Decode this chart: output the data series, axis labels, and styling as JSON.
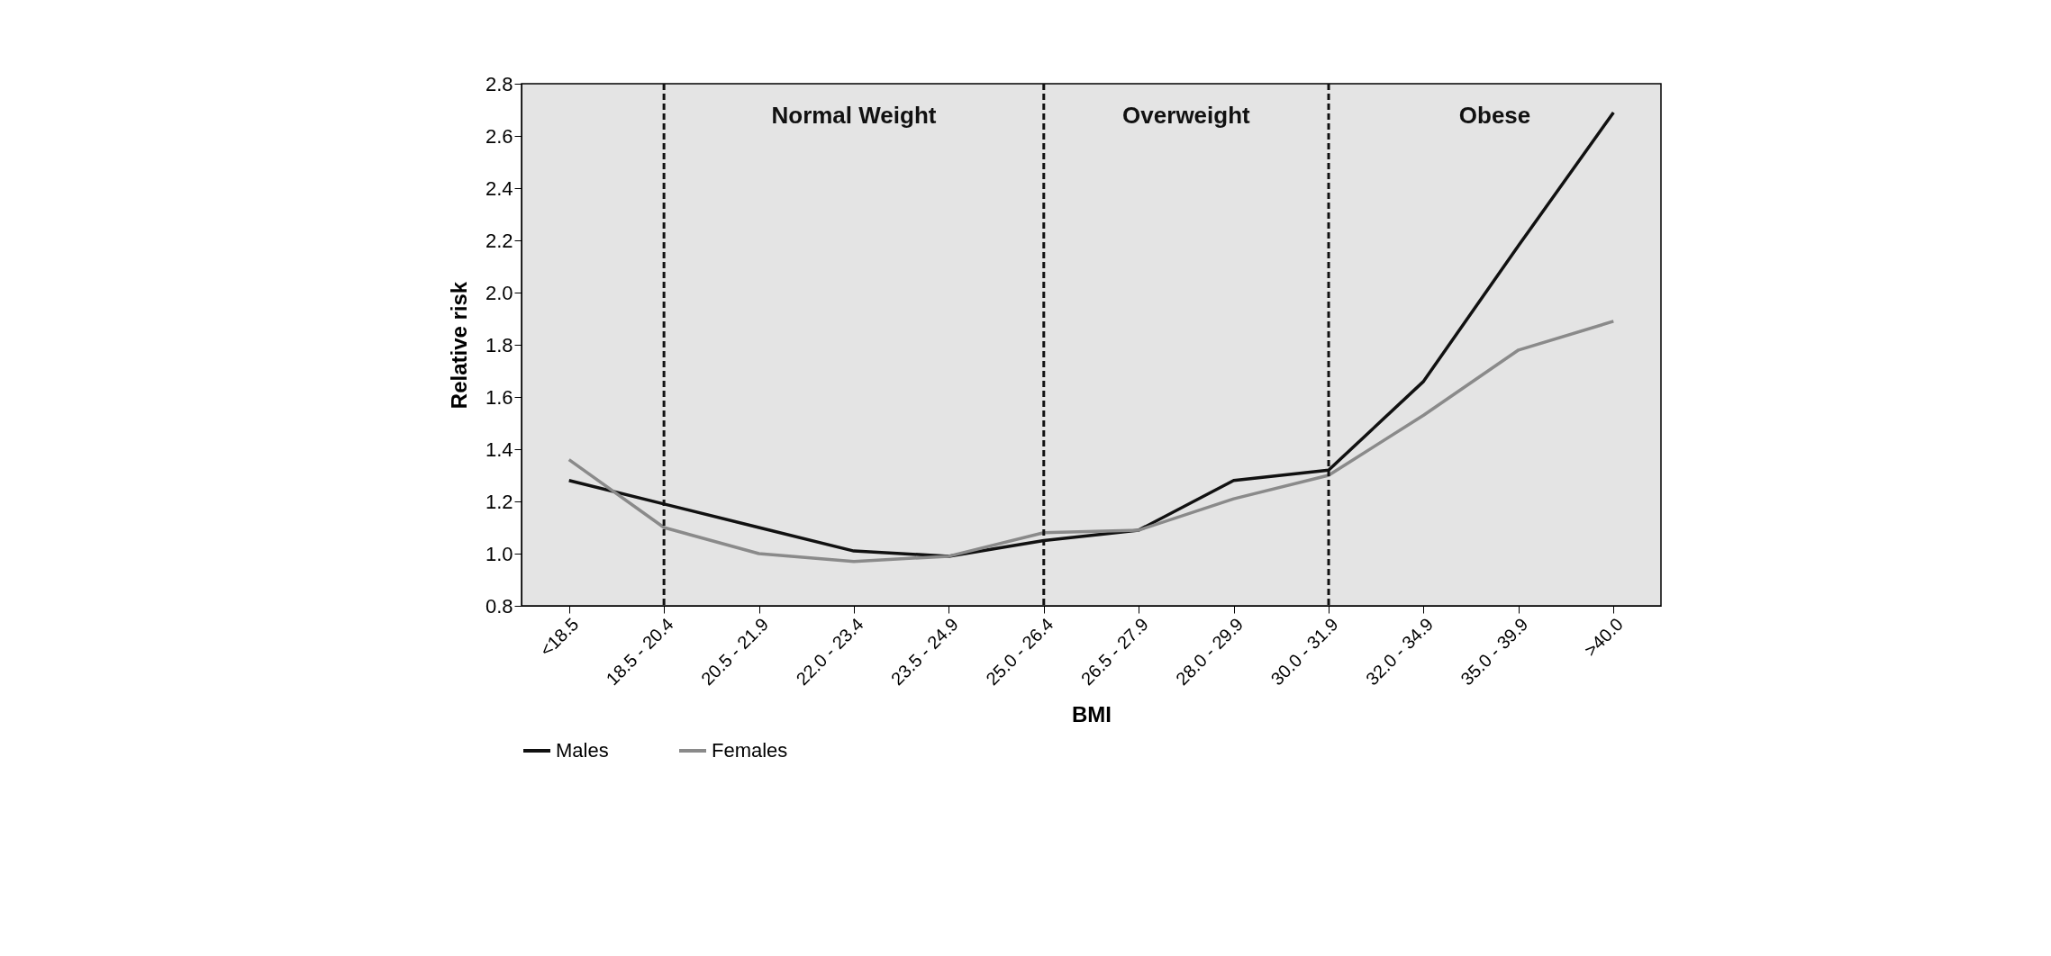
{
  "chart_data": {
    "type": "line",
    "xlabel": "BMI",
    "ylabel": "Relative risk",
    "categories": [
      "<18.5",
      "18.5 - 20.4",
      "20.5 - 21.9",
      "22.0 - 23.4",
      "23.5 - 24.9",
      "25.0 - 26.4",
      "26.5 - 27.9",
      "28.0 - 29.9",
      "30.0 - 31.9",
      "32.0 - 34.9",
      "35.0 - 39.9",
      ">40.0"
    ],
    "series": [
      {
        "name": "Males",
        "color": "#111111",
        "values": [
          1.28,
          1.19,
          1.1,
          1.01,
          0.99,
          1.05,
          1.09,
          1.28,
          1.32,
          1.66,
          2.18,
          2.69
        ]
      },
      {
        "name": "Females",
        "color": "#8a8a8a",
        "values": [
          1.36,
          1.1,
          1.0,
          0.97,
          0.99,
          1.08,
          1.09,
          1.21,
          1.3,
          1.53,
          1.78,
          1.89
        ]
      }
    ],
    "ylim": [
      0.8,
      2.8
    ],
    "yticks": [
      {
        "value": 0.8,
        "label": "0.8"
      },
      {
        "value": 1,
        "label": "1.0"
      },
      {
        "value": 1.2,
        "label": "1.2"
      },
      {
        "value": 1.4,
        "label": "1.4"
      },
      {
        "value": 1.6,
        "label": "1.6"
      },
      {
        "value": 1.8,
        "label": "1.8"
      },
      {
        "value": 2,
        "label": "2.0"
      },
      {
        "value": 2.2,
        "label": "2.2"
      },
      {
        "value": 2.4,
        "label": "2.4"
      },
      {
        "value": 2.6,
        "label": "2.6"
      },
      {
        "value": 2.8,
        "label": "2.8"
      }
    ],
    "ref_lines": [
      {
        "axis": "x",
        "value": "18.5 - 20.4",
        "color": "#111111",
        "line_style": "dashed"
      },
      {
        "axis": "x",
        "value": "25.0 - 26.4",
        "color": "#111111",
        "line_style": "dashed"
      },
      {
        "axis": "x",
        "value": "30.0 - 31.9",
        "color": "#111111",
        "line_style": "dashed"
      }
    ],
    "annotations": [
      "Normal Weight",
      "Overweight",
      "Obese"
    ],
    "grid": false,
    "legend": "bottom",
    "marker": "none",
    "line_style": "solid"
  }
}
